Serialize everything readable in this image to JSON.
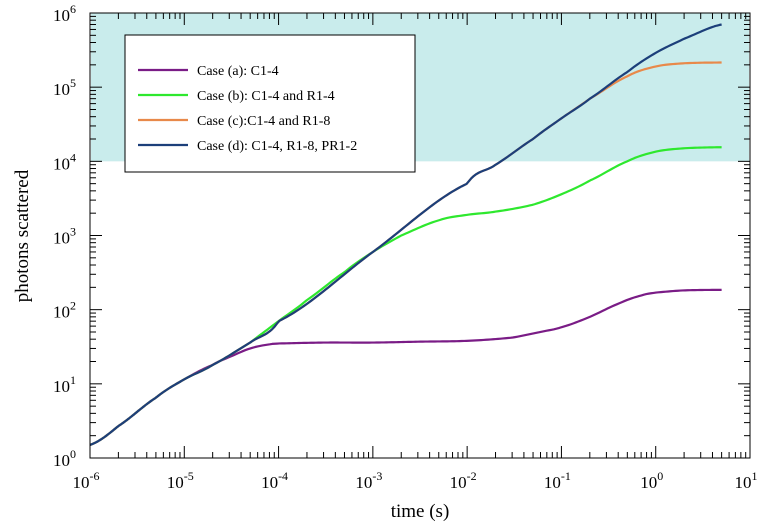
{
  "chart_data": {
    "type": "line",
    "title": "",
    "xlabel": "time (s)",
    "ylabel": "photons scattered",
    "x_scale": "log",
    "y_scale": "log",
    "xlim": [
      1e-06,
      10
    ],
    "ylim": [
      1,
      1000000
    ],
    "grid": false,
    "legend_position": "top-left",
    "x_ticks": [
      {
        "base": "10",
        "exp": "-6"
      },
      {
        "base": "10",
        "exp": "-5"
      },
      {
        "base": "10",
        "exp": "-4"
      },
      {
        "base": "10",
        "exp": "-3"
      },
      {
        "base": "10",
        "exp": "-2"
      },
      {
        "base": "10",
        "exp": "-1"
      },
      {
        "base": "10",
        "exp": "0"
      },
      {
        "base": "10",
        "exp": "1"
      }
    ],
    "y_ticks": [
      {
        "base": "10",
        "exp": "0"
      },
      {
        "base": "10",
        "exp": "1"
      },
      {
        "base": "10",
        "exp": "2"
      },
      {
        "base": "10",
        "exp": "3"
      },
      {
        "base": "10",
        "exp": "4"
      },
      {
        "base": "10",
        "exp": "5"
      },
      {
        "base": "10",
        "exp": "6"
      }
    ],
    "shaded_region": {
      "y_from": 10000,
      "y_to": 1000000,
      "color": "#c9ecec"
    },
    "series": [
      {
        "name": "Case (a): C1-4",
        "color": "#7a1c86",
        "points": [
          [
            1e-06,
            1.5
          ],
          [
            2e-06,
            2.7
          ],
          [
            5e-06,
            6.5
          ],
          [
            1e-05,
            11.5
          ],
          [
            2e-05,
            18
          ],
          [
            3e-05,
            23
          ],
          [
            5e-05,
            30
          ],
          [
            8e-05,
            34
          ],
          [
            0.0001,
            35
          ],
          [
            0.0003,
            36
          ],
          [
            0.001,
            36
          ],
          [
            0.003,
            37
          ],
          [
            0.01,
            38
          ],
          [
            0.03,
            42
          ],
          [
            0.06,
            50
          ],
          [
            0.1,
            58
          ],
          [
            0.2,
            80
          ],
          [
            0.4,
            120
          ],
          [
            0.7,
            155
          ],
          [
            1,
            170
          ],
          [
            2,
            182
          ],
          [
            5,
            185
          ]
        ]
      },
      {
        "name": "Case (b): C1-4 and R1-4",
        "color": "#2ee82e",
        "points": [
          [
            1e-06,
            1.5
          ],
          [
            2e-06,
            2.7
          ],
          [
            5e-06,
            6.5
          ],
          [
            1e-05,
            11.5
          ],
          [
            2e-05,
            18
          ],
          [
            5e-05,
            36
          ],
          [
            0.0001,
            70
          ],
          [
            0.0002,
            135
          ],
          [
            0.0005,
            320
          ],
          [
            0.001,
            600
          ],
          [
            0.002,
            1000
          ],
          [
            0.005,
            1600
          ],
          [
            0.01,
            1900
          ],
          [
            0.02,
            2100
          ],
          [
            0.05,
            2600
          ],
          [
            0.1,
            3600
          ],
          [
            0.2,
            5500
          ],
          [
            0.5,
            10000
          ],
          [
            1,
            13500
          ],
          [
            2,
            15000
          ],
          [
            5,
            15500
          ]
        ]
      },
      {
        "name": "Case (c):C1-4 and R1-8",
        "color": "#e8894a",
        "points": [
          [
            1e-06,
            1.5
          ],
          [
            2e-06,
            2.7
          ],
          [
            5e-06,
            6.5
          ],
          [
            1e-05,
            11.5
          ],
          [
            2e-05,
            18
          ],
          [
            5e-05,
            36
          ],
          [
            0.0001,
            70
          ],
          [
            0.001,
            600
          ],
          [
            0.01,
            5000
          ],
          [
            0.02,
            9000
          ],
          [
            0.05,
            20000
          ],
          [
            0.1,
            38000
          ],
          [
            0.2,
            70000
          ],
          [
            0.5,
            140000
          ],
          [
            1,
            190000
          ],
          [
            2,
            210000
          ],
          [
            5,
            215000
          ]
        ]
      },
      {
        "name": "Case (d): C1-4, R1-8, PR1-2",
        "color": "#1c3f7a",
        "points": [
          [
            1e-06,
            1.5
          ],
          [
            2e-06,
            2.7
          ],
          [
            5e-06,
            6.5
          ],
          [
            1e-05,
            11.5
          ],
          [
            2e-05,
            18
          ],
          [
            5e-05,
            36
          ],
          [
            0.0001,
            70
          ],
          [
            0.001,
            600
          ],
          [
            0.01,
            5000
          ],
          [
            0.02,
            9000
          ],
          [
            0.05,
            20000
          ],
          [
            0.1,
            38000
          ],
          [
            0.2,
            70000
          ],
          [
            0.5,
            160000
          ],
          [
            1,
            290000
          ],
          [
            2,
            450000
          ],
          [
            5,
            700000
          ]
        ]
      }
    ]
  }
}
